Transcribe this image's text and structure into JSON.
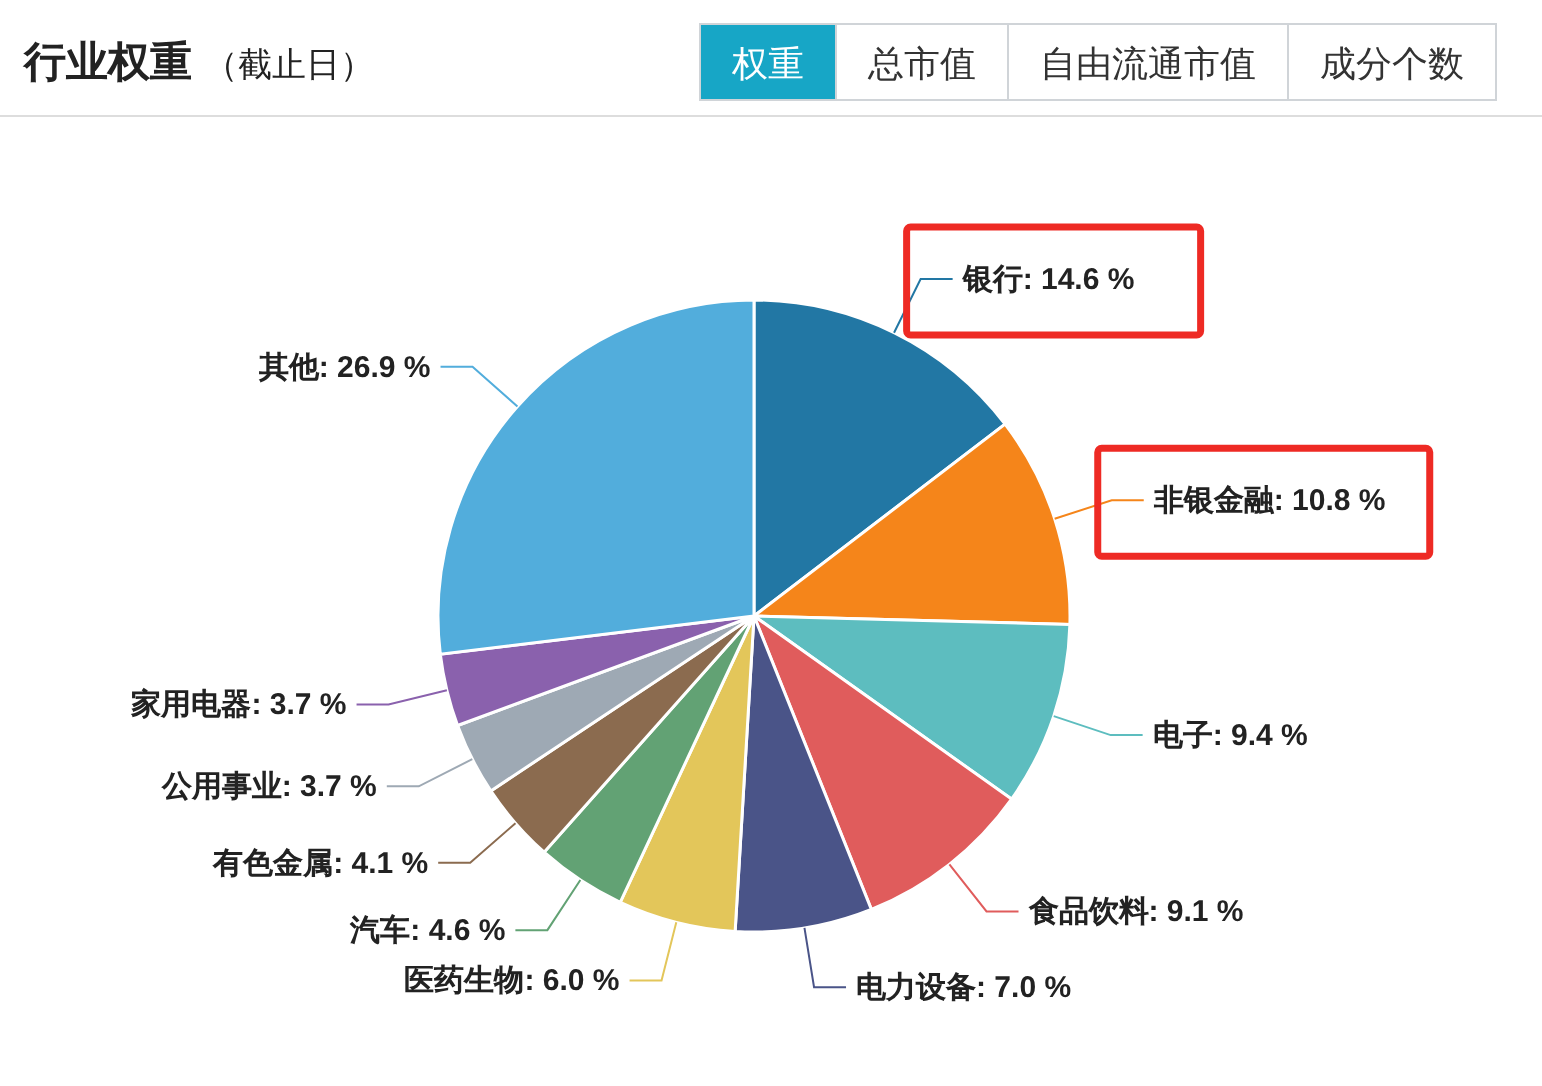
{
  "chart_data": {
    "type": "pie",
    "title": "行业权重",
    "subtitle": "（截止日）",
    "categories": [
      "银行",
      "非银金融",
      "电子",
      "食品饮料",
      "电力设备",
      "医药生物",
      "汽车",
      "有色金属",
      "公用事业",
      "家用电器",
      "其他"
    ],
    "values": [
      14.6,
      10.8,
      9.4,
      9.1,
      7.0,
      6.0,
      4.6,
      4.1,
      3.7,
      3.7,
      26.9
    ],
    "value_labels": [
      "14.6 %",
      "10.8 %",
      "9.4 %",
      "9.1 %",
      "7.0 %",
      "6.0 %",
      "4.6 %",
      "4.1 %",
      "3.7 %",
      "3.7 %",
      "26.9 %"
    ],
    "colors": [
      "#2277a4",
      "#f5851a",
      "#5dbdbf",
      "#e05c5c",
      "#4a5488",
      "#e3c65a",
      "#62a274",
      "#8b6b4f",
      "#9ea9b4",
      "#8a61ad",
      "#52addc"
    ],
    "annotations": [
      "权重",
      "总市值",
      "自由流通市值",
      "成分个数"
    ]
  }
}
